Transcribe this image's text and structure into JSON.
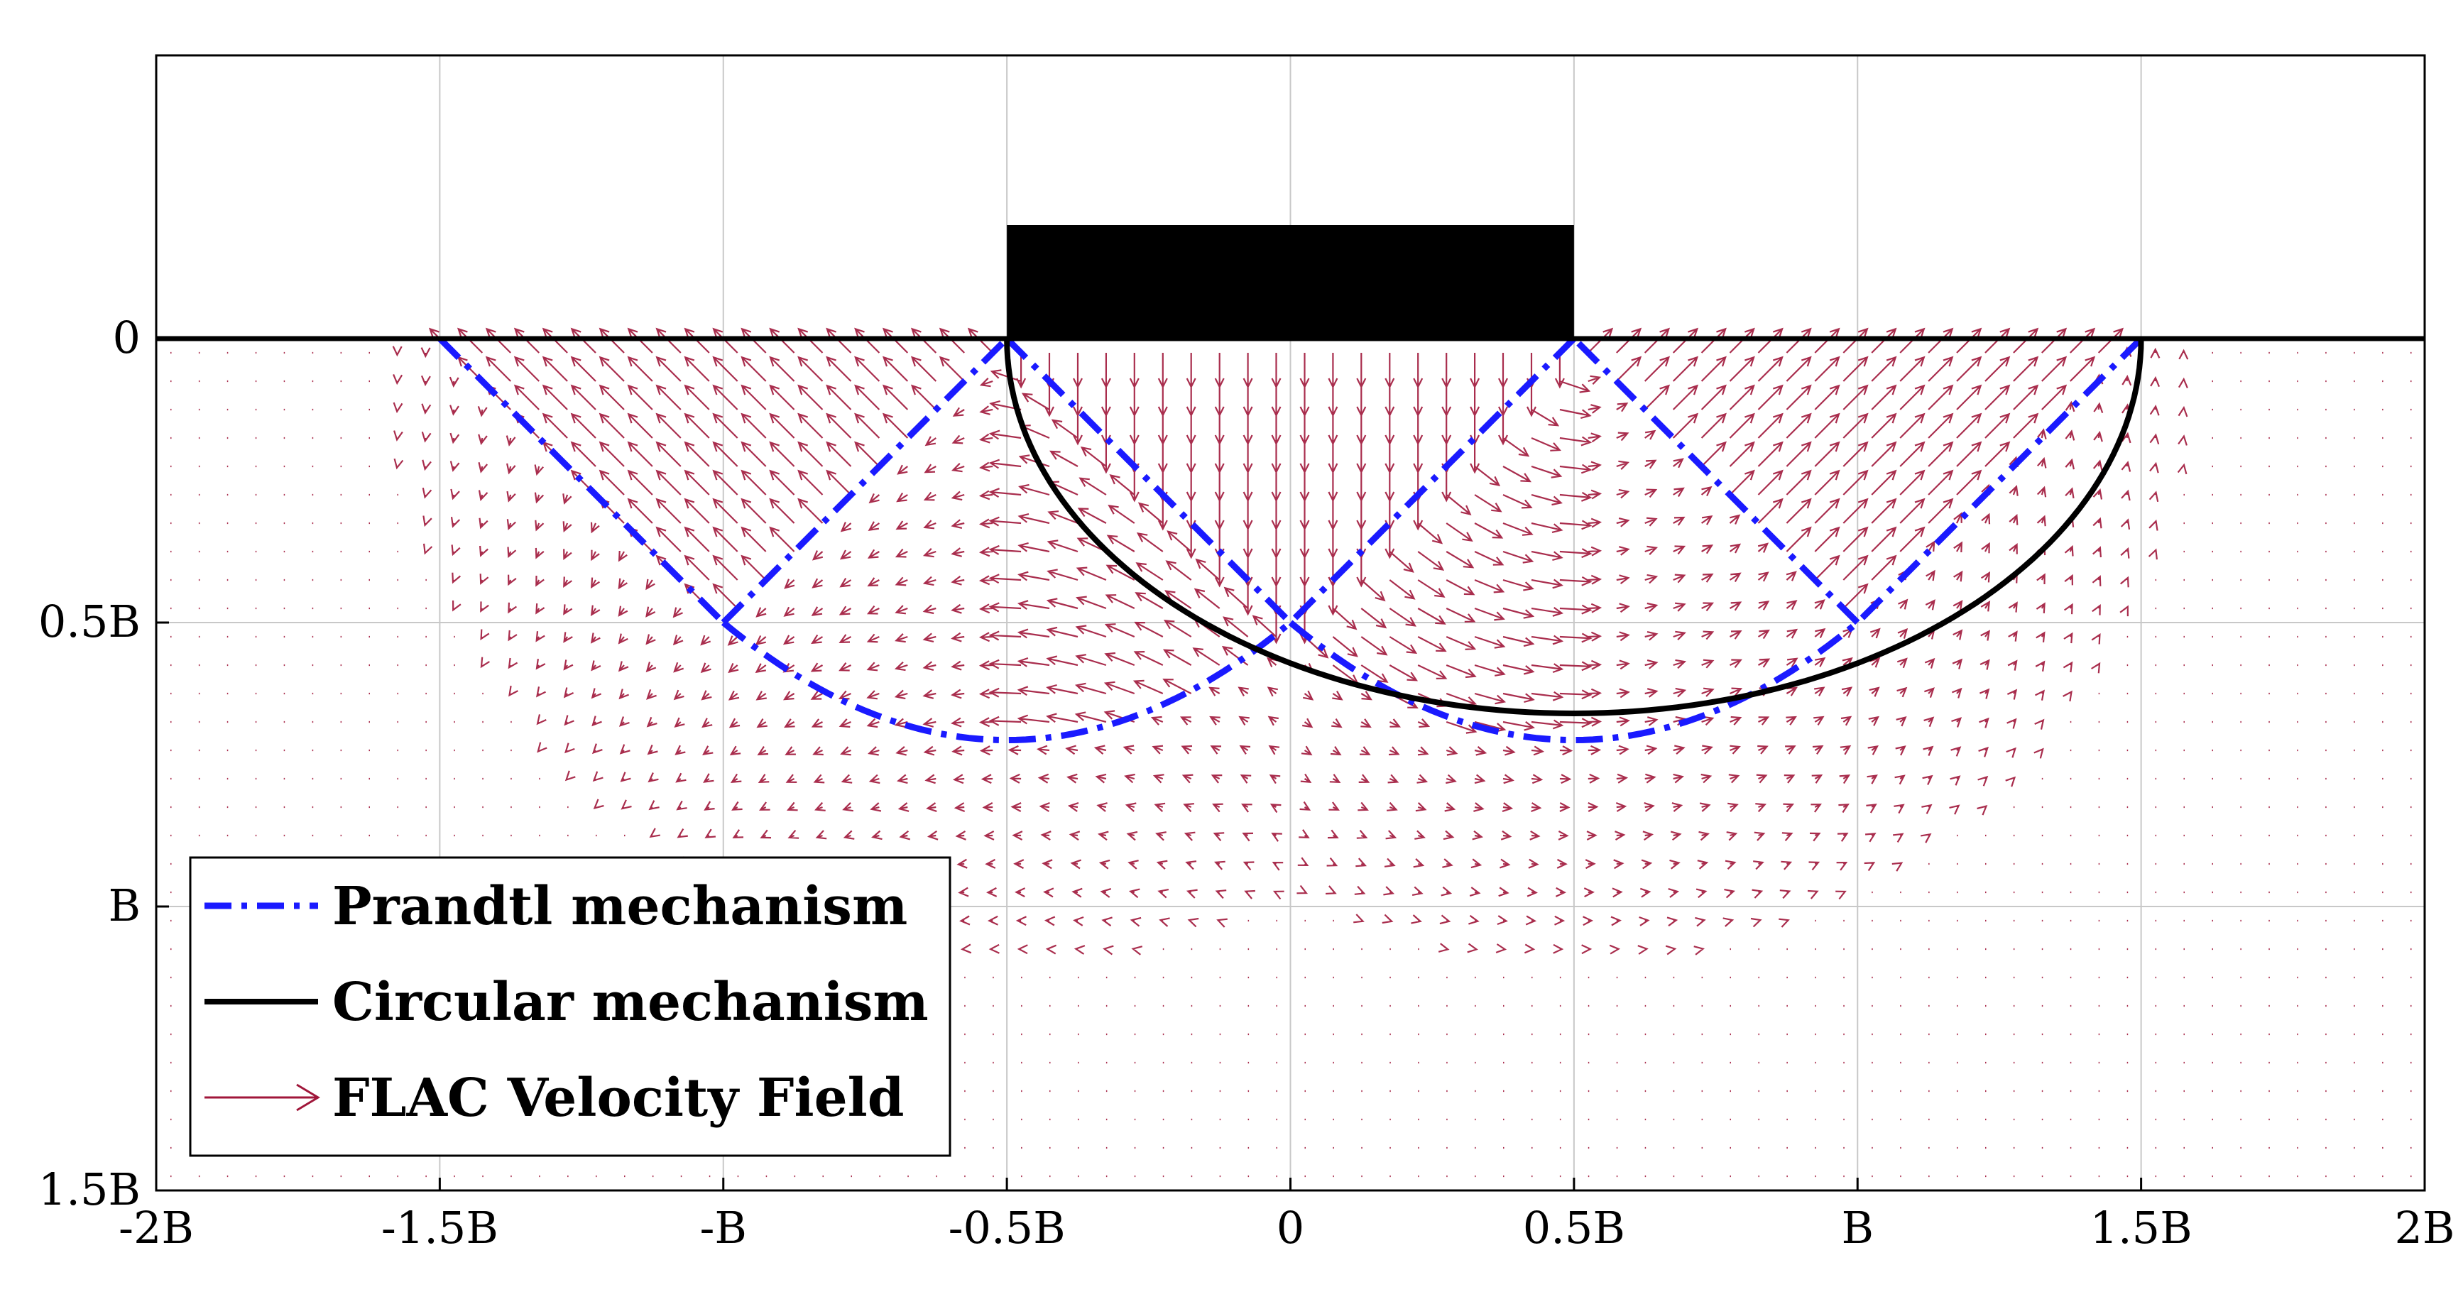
{
  "chart_data": {
    "type": "line",
    "title": "",
    "xlabel": "",
    "ylabel": "",
    "xlim": [
      -2,
      2
    ],
    "ylim": [
      -0.55,
      1.5
    ],
    "y_axis_inverted": true,
    "grid": true,
    "legend_position": "bottom-left",
    "x_ticks": [
      {
        "value": -2,
        "label": "-2B"
      },
      {
        "value": -1.5,
        "label": "-1.5B"
      },
      {
        "value": -1,
        "label": "-B"
      },
      {
        "value": -0.5,
        "label": "-0.5B"
      },
      {
        "value": 0,
        "label": "0"
      },
      {
        "value": 0.5,
        "label": "0.5B"
      },
      {
        "value": 1,
        "label": "B"
      },
      {
        "value": 1.5,
        "label": "1.5B"
      },
      {
        "value": 2,
        "label": "2B"
      }
    ],
    "y_ticks": [
      {
        "value": 0,
        "label": "0"
      },
      {
        "value": 0.5,
        "label": "0.5B"
      },
      {
        "value": 1,
        "label": "B"
      },
      {
        "value": 1.5,
        "label": "1.5B"
      }
    ],
    "ground_surface": {
      "x": [
        -2,
        2
      ],
      "y": [
        0,
        0
      ]
    },
    "footing": {
      "x_range": [
        -0.5,
        0.5
      ],
      "depth_range": [
        -0.2,
        0
      ]
    },
    "series": [
      {
        "name": "Prandtl mechanism",
        "style": "dash-dot",
        "color": "#1a1aff",
        "parts": [
          {
            "x": [
              -1.5,
              -1.0
            ],
            "y": [
              0,
              0.5
            ]
          },
          {
            "x": [
              -1.0,
              -0.5
            ],
            "y": [
              0.5,
              0
            ]
          },
          {
            "x": [
              -0.5,
              0.0
            ],
            "y": [
              0,
              0.5
            ]
          },
          {
            "x": [
              -1.0,
              -0.75,
              -0.5,
              -0.25,
              0.0
            ],
            "y": [
              0.5,
              0.66,
              0.707,
              0.66,
              0.5
            ]
          },
          {
            "x": [
              1.5,
              1.0
            ],
            "y": [
              0,
              0.5
            ]
          },
          {
            "x": [
              1.0,
              0.5
            ],
            "y": [
              0.5,
              0
            ]
          },
          {
            "x": [
              0.5,
              0.0
            ],
            "y": [
              0,
              0.5
            ]
          },
          {
            "x": [
              0.0,
              0.25,
              0.5,
              0.75,
              1.0
            ],
            "y": [
              0.5,
              0.66,
              0.707,
              0.66,
              0.5
            ]
          }
        ]
      },
      {
        "name": "Circular mechanism",
        "style": "solid",
        "color": "#000000",
        "curve": {
          "type": "arc",
          "center": [
            0.5,
            0
          ],
          "radius": 1.0,
          "y_scale": 0.66,
          "x_from": -0.5,
          "x_to": 1.5
        }
      },
      {
        "name": "FLAC Velocity Field",
        "style": "arrows",
        "color": "#a0163a",
        "quiver_grid": {
          "x_range": [
            -2,
            2
          ],
          "y_range": [
            0,
            1.5
          ],
          "spacing": 0.05
        }
      }
    ]
  }
}
